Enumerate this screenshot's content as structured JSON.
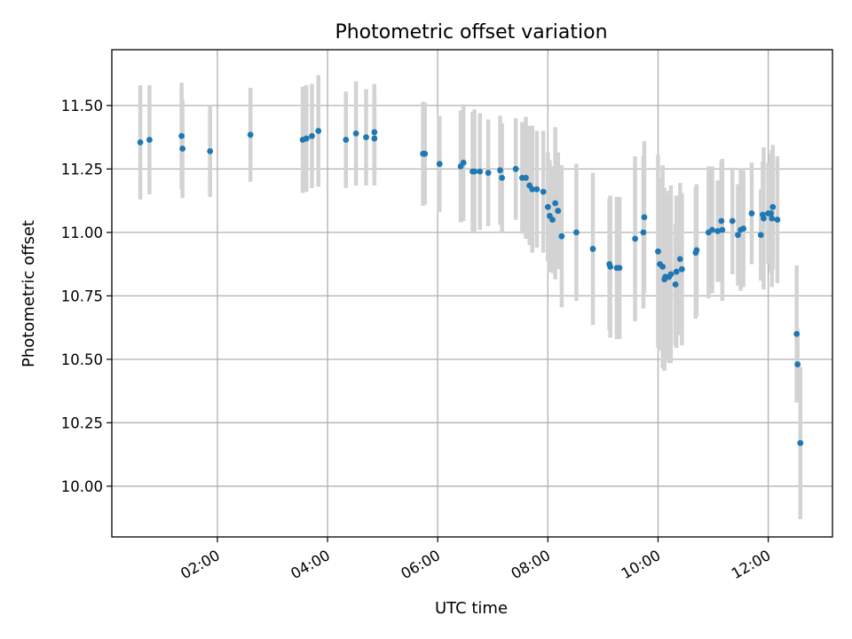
{
  "chart_data": {
    "type": "scatter",
    "title": "Photometric offset variation",
    "xlabel": "UTC time",
    "ylabel": "Photometric offset",
    "x_unit": "time of day (HH:MM, UTC)",
    "xlim": [
      "00:05",
      "13:10"
    ],
    "ylim": [
      9.8,
      11.72
    ],
    "x_ticks": [
      "02:00",
      "04:00",
      "06:00",
      "08:00",
      "10:00",
      "12:00"
    ],
    "y_ticks": [
      10.0,
      10.25,
      10.5,
      10.75,
      11.0,
      11.25,
      11.5
    ],
    "y_tick_labels": [
      "10.00",
      "10.25",
      "10.50",
      "10.75",
      "11.00",
      "11.25",
      "11.50"
    ],
    "grid": true,
    "x_tick_rotation": "rotated 30°",
    "colors": {
      "points": "#1f77b4",
      "error_bars": "#d3d3d3",
      "grid": "#b0b0b0"
    },
    "points": [
      {
        "x": "00:36",
        "y": 11.355,
        "err": 0.225
      },
      {
        "x": "00:46",
        "y": 11.365,
        "err": 0.215
      },
      {
        "x": "01:21",
        "y": 11.38,
        "err": 0.21
      },
      {
        "x": "01:22",
        "y": 11.33,
        "err": 0.195
      },
      {
        "x": "01:52",
        "y": 11.32,
        "err": 0.18
      },
      {
        "x": "02:36",
        "y": 11.385,
        "err": 0.185
      },
      {
        "x": "03:33",
        "y": 11.365,
        "err": 0.21
      },
      {
        "x": "03:37",
        "y": 11.37,
        "err": 0.21
      },
      {
        "x": "03:43",
        "y": 11.38,
        "err": 0.205
      },
      {
        "x": "03:50",
        "y": 11.4,
        "err": 0.22
      },
      {
        "x": "04:20",
        "y": 11.365,
        "err": 0.19
      },
      {
        "x": "04:31",
        "y": 11.39,
        "err": 0.205
      },
      {
        "x": "04:42",
        "y": 11.375,
        "err": 0.19
      },
      {
        "x": "04:51",
        "y": 11.395,
        "err": 0.19
      },
      {
        "x": "04:51",
        "y": 11.37,
        "err": 0.185
      },
      {
        "x": "05:44",
        "y": 11.31,
        "err": 0.205
      },
      {
        "x": "05:46",
        "y": 11.31,
        "err": 0.2
      },
      {
        "x": "06:02",
        "y": 11.27,
        "err": 0.19
      },
      {
        "x": "06:25",
        "y": 11.26,
        "err": 0.22
      },
      {
        "x": "06:28",
        "y": 11.275,
        "err": 0.23
      },
      {
        "x": "06:38",
        "y": 11.24,
        "err": 0.235
      },
      {
        "x": "06:40",
        "y": 11.24,
        "err": 0.245
      },
      {
        "x": "06:46",
        "y": 11.24,
        "err": 0.23
      },
      {
        "x": "06:55",
        "y": 11.235,
        "err": 0.21
      },
      {
        "x": "07:08",
        "y": 11.245,
        "err": 0.215
      },
      {
        "x": "07:10",
        "y": 11.215,
        "err": 0.215
      },
      {
        "x": "07:25",
        "y": 11.25,
        "err": 0.2
      },
      {
        "x": "07:32",
        "y": 11.215,
        "err": 0.22
      },
      {
        "x": "07:36",
        "y": 11.215,
        "err": 0.24
      },
      {
        "x": "07:40",
        "y": 11.185,
        "err": 0.235
      },
      {
        "x": "07:43",
        "y": 11.17,
        "err": 0.25
      },
      {
        "x": "07:48",
        "y": 11.17,
        "err": 0.23
      },
      {
        "x": "07:55",
        "y": 11.16,
        "err": 0.24
      },
      {
        "x": "08:00",
        "y": 11.1,
        "err": 0.215
      },
      {
        "x": "08:02",
        "y": 11.065,
        "err": 0.22
      },
      {
        "x": "08:05",
        "y": 11.05,
        "err": 0.21
      },
      {
        "x": "08:08",
        "y": 11.115,
        "err": 0.3
      },
      {
        "x": "08:11",
        "y": 11.085,
        "err": 0.23
      },
      {
        "x": "08:15",
        "y": 10.985,
        "err": 0.28
      },
      {
        "x": "08:31",
        "y": 11.0,
        "err": 0.27
      },
      {
        "x": "08:49",
        "y": 10.935,
        "err": 0.3
      },
      {
        "x": "09:07",
        "y": 10.875,
        "err": 0.26
      },
      {
        "x": "09:08",
        "y": 10.865,
        "err": 0.28
      },
      {
        "x": "09:15",
        "y": 10.86,
        "err": 0.28
      },
      {
        "x": "09:18",
        "y": 10.86,
        "err": 0.28
      },
      {
        "x": "09:35",
        "y": 10.975,
        "err": 0.325
      },
      {
        "x": "09:44",
        "y": 11.0,
        "err": 0.3
      },
      {
        "x": "09:45",
        "y": 11.06,
        "err": 0.3
      },
      {
        "x": "10:00",
        "y": 10.925,
        "err": 0.38
      },
      {
        "x": "10:02",
        "y": 10.875,
        "err": 0.34
      },
      {
        "x": "10:05",
        "y": 10.865,
        "err": 0.4
      },
      {
        "x": "10:07",
        "y": 10.815,
        "err": 0.36
      },
      {
        "x": "10:08",
        "y": 10.825,
        "err": 0.33
      },
      {
        "x": "10:12",
        "y": 10.825,
        "err": 0.34
      },
      {
        "x": "10:14",
        "y": 10.835,
        "err": 0.35
      },
      {
        "x": "10:19",
        "y": 10.795,
        "err": 0.24
      },
      {
        "x": "10:20",
        "y": 10.845,
        "err": 0.3
      },
      {
        "x": "10:24",
        "y": 10.895,
        "err": 0.3
      },
      {
        "x": "10:26",
        "y": 10.855,
        "err": 0.3
      },
      {
        "x": "10:41",
        "y": 10.92,
        "err": 0.26
      },
      {
        "x": "10:42",
        "y": 10.93,
        "err": 0.26
      },
      {
        "x": "10:55",
        "y": 11.0,
        "err": 0.26
      },
      {
        "x": "10:59",
        "y": 11.01,
        "err": 0.25
      },
      {
        "x": "11:05",
        "y": 11.005,
        "err": 0.2
      },
      {
        "x": "11:09",
        "y": 11.045,
        "err": 0.24
      },
      {
        "x": "11:10",
        "y": 11.01,
        "err": 0.28
      },
      {
        "x": "11:21",
        "y": 11.045,
        "err": 0.21
      },
      {
        "x": "11:27",
        "y": 10.99,
        "err": 0.2
      },
      {
        "x": "11:30",
        "y": 11.01,
        "err": 0.24
      },
      {
        "x": "11:33",
        "y": 11.015,
        "err": 0.23
      },
      {
        "x": "11:42",
        "y": 11.075,
        "err": 0.2
      },
      {
        "x": "11:52",
        "y": 10.99,
        "err": 0.18
      },
      {
        "x": "11:54",
        "y": 11.07,
        "err": 0.21
      },
      {
        "x": "11:55",
        "y": 11.055,
        "err": 0.28
      },
      {
        "x": "12:00",
        "y": 11.075,
        "err": 0.2
      },
      {
        "x": "12:03",
        "y": 11.075,
        "err": 0.235
      },
      {
        "x": "12:04",
        "y": 11.055,
        "err": 0.27
      },
      {
        "x": "12:05",
        "y": 11.1,
        "err": 0.245
      },
      {
        "x": "12:10",
        "y": 11.05,
        "err": 0.25
      },
      {
        "x": "12:31",
        "y": 10.6,
        "err": 0.27
      },
      {
        "x": "12:32",
        "y": 10.48,
        "err": 0.14
      },
      {
        "x": "12:35",
        "y": 10.17,
        "err": 0.3
      }
    ]
  }
}
